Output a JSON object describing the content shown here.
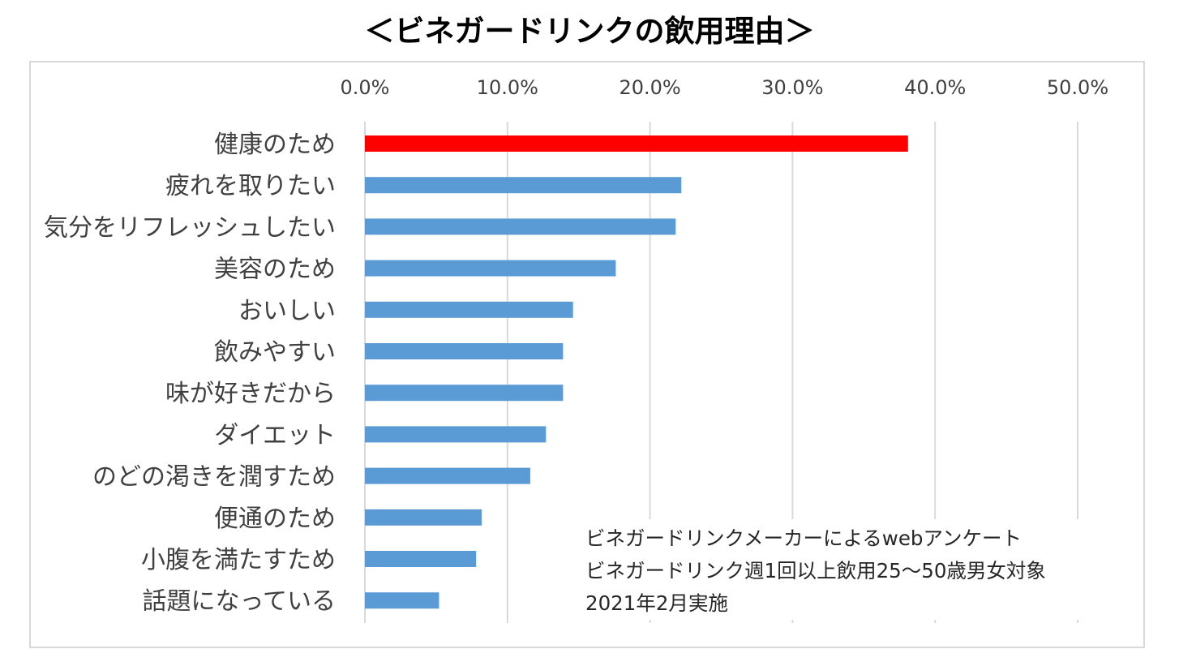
{
  "chart_data": {
    "type": "bar",
    "orientation": "horizontal",
    "title": "＜ビネガードリンクの飲用理由＞",
    "xlabel": "",
    "ylabel": "",
    "xlim": [
      0,
      50
    ],
    "x_ticks": [
      "0.0%",
      "10.0%",
      "20.0%",
      "30.0%",
      "40.0%",
      "50.0%"
    ],
    "x_tick_values": [
      0,
      10,
      20,
      30,
      40,
      50
    ],
    "x_axis_position": "top",
    "grid": "vertical",
    "legend": "none",
    "categories": [
      "健康のため",
      "疲れを取りたい",
      "気分をリフレッシュしたい",
      "美容のため",
      "おいしい",
      "飲みやすい",
      "味が好きだから",
      "ダイエット",
      "のどの渇きを潤すため",
      "便通のため",
      "小腹を満たすため",
      "話題になっている"
    ],
    "values": [
      38.1,
      22.2,
      21.8,
      17.6,
      14.6,
      13.9,
      13.9,
      12.7,
      11.6,
      8.2,
      7.8,
      5.2
    ],
    "colors": [
      "#ff0000",
      "#5b9bd5",
      "#5b9bd5",
      "#5b9bd5",
      "#5b9bd5",
      "#5b9bd5",
      "#5b9bd5",
      "#5b9bd5",
      "#5b9bd5",
      "#5b9bd5",
      "#5b9bd5",
      "#5b9bd5"
    ],
    "annotations": [
      "ビネガードリンクメーカーによるwebアンケート",
      "ビネガードリンク週1回以上飲用25～50歳男女対象",
      "2021年2月実施"
    ]
  }
}
